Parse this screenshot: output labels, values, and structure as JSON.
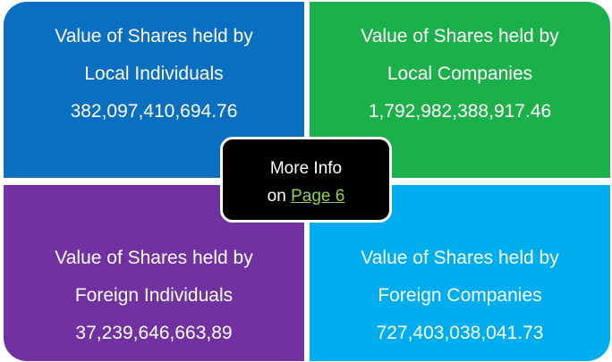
{
  "quadrants": [
    {
      "heading": "Value of Shares held by",
      "group": "Local Individuals",
      "value": "382,097,410,694.76"
    },
    {
      "heading": "Value of Shares held by",
      "group": "Local Companies",
      "value": "1,792,982,388,917.46"
    },
    {
      "heading": "Value of Shares held by",
      "group": "Foreign Individuals",
      "value": "37,239,646,663,89"
    },
    {
      "heading": "Value of Shares held by",
      "group": "Foreign Companies",
      "value": "727,403,038,041.73"
    }
  ],
  "center": {
    "line1": "More Info",
    "prefix": "on",
    "link": "Page 6"
  }
}
